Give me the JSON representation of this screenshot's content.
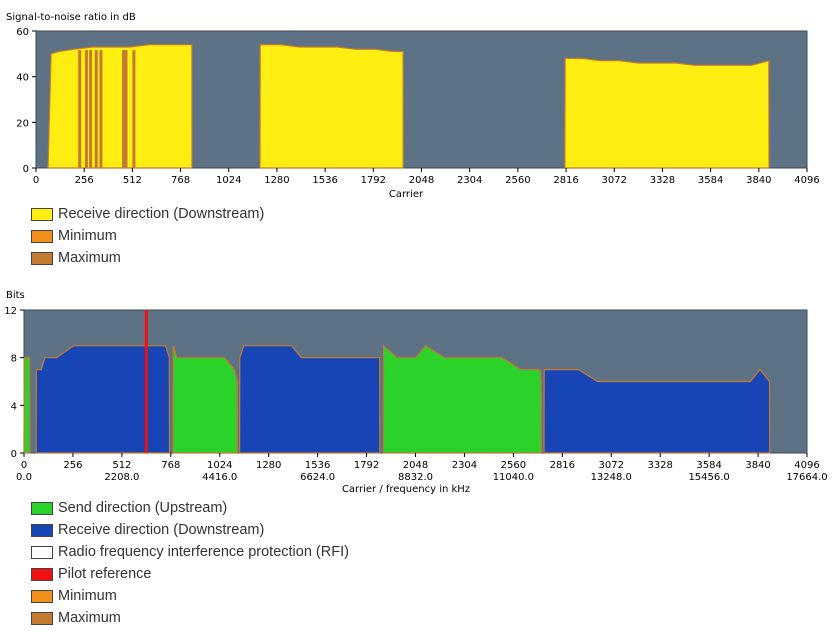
{
  "chart_data": [
    {
      "type": "area",
      "title": "Signal-to-noise ratio in dB",
      "xlabel": "Carrier",
      "ylabel": "",
      "xlim": [
        0,
        4096
      ],
      "ylim": [
        0,
        60
      ],
      "x_ticks": [
        "0",
        "256",
        "512",
        "768",
        "1024",
        "1280",
        "1536",
        "1792",
        "2048",
        "2304",
        "2560",
        "2816",
        "3072",
        "3328",
        "3584",
        "3840",
        "4096"
      ],
      "y_ticks": [
        "0",
        "20",
        "40",
        "60"
      ],
      "grid": false,
      "series": [
        {
          "name": "Receive direction (Downstream)",
          "color": "#ffee11",
          "x": [
            64,
            80,
            120,
            200,
            300,
            400,
            500,
            600,
            700,
            800,
            828,
            829
          ],
          "y": [
            0,
            50,
            51,
            52,
            53,
            53,
            53,
            54,
            54,
            54,
            54,
            0
          ]
        },
        {
          "name": "Receive direction (Downstream)",
          "color": "#ffee11",
          "x": [
            1190,
            1191,
            1300,
            1400,
            1500,
            1600,
            1700,
            1800,
            1900,
            1950,
            1951
          ],
          "y": [
            0,
            54,
            54,
            53,
            53,
            53,
            52,
            52,
            51,
            51,
            0
          ]
        },
        {
          "name": "Receive direction (Downstream)",
          "color": "#ffee11",
          "x": [
            2810,
            2811,
            2900,
            3000,
            3100,
            3200,
            3300,
            3400,
            3500,
            3600,
            3700,
            3800,
            3893,
            3894
          ],
          "y": [
            0,
            48,
            48,
            47,
            47,
            46,
            46,
            46,
            45,
            45,
            45,
            45,
            47,
            0
          ]
        }
      ],
      "min_dips": {
        "x": [
          232,
          268,
          290,
          320,
          345,
          465,
          478,
          520
        ],
        "y": [
          0,
          0,
          0,
          0,
          0,
          0,
          0,
          0
        ]
      },
      "legend": [
        {
          "label": "Receive direction (Downstream)",
          "color": "#ffee11"
        },
        {
          "label": "Minimum",
          "color": "#f0901a"
        },
        {
          "label": "Maximum",
          "color": "#c47a30"
        }
      ],
      "legend_position": "below"
    },
    {
      "type": "area",
      "title": "Bits",
      "xlabel": "Carrier / frequency in kHz",
      "ylabel": "",
      "xlim": [
        0,
        4096
      ],
      "ylim": [
        0,
        12
      ],
      "x_ticks": [
        "0",
        "256",
        "512",
        "768",
        "1024",
        "1280",
        "1536",
        "1792",
        "2048",
        "2304",
        "2560",
        "2816",
        "3072",
        "3328",
        "3584",
        "3840",
        "4096"
      ],
      "x_ticks_freq": [
        "0.0",
        "2208.0",
        "4416.0",
        "6624.0",
        "8832.0",
        "11040.0",
        "13248.0",
        "15456.0",
        "17664.0"
      ],
      "y_ticks": [
        "0",
        "4",
        "8",
        "12"
      ],
      "grid": false,
      "series": [
        {
          "name": "Send direction (Upstream)",
          "color": "#2ad22a",
          "x": [
            0,
            1,
            30,
            31
          ],
          "y": [
            0,
            8,
            8,
            0
          ]
        },
        {
          "name": "Receive direction (Downstream)",
          "color": "#1845b5",
          "x": [
            64,
            65,
            90,
            110,
            170,
            260,
            350,
            500,
            700,
            740,
            760,
            761
          ],
          "y": [
            0,
            7,
            7,
            8,
            8,
            9,
            9,
            9,
            9,
            9,
            8,
            0
          ]
        },
        {
          "name": "Send direction (Upstream)",
          "color": "#2ad22a",
          "x": [
            780,
            781,
            800,
            900,
            1000,
            1050,
            1100,
            1115,
            1116
          ],
          "y": [
            0,
            9,
            8,
            8,
            8,
            8,
            7,
            6,
            0
          ]
        },
        {
          "name": "Receive direction (Downstream)",
          "color": "#1845b5",
          "x": [
            1128,
            1129,
            1150,
            1200,
            1300,
            1400,
            1450,
            1500,
            1600,
            1800,
            1860,
            1861
          ],
          "y": [
            0,
            8,
            9,
            9,
            9,
            9,
            8,
            8,
            8,
            8,
            8,
            0
          ]
        },
        {
          "name": "Send direction (Upstream)",
          "color": "#2ad22a",
          "x": [
            1880,
            1881,
            1950,
            2000,
            2050,
            2100,
            2200,
            2300,
            2400,
            2500,
            2600,
            2700,
            2705,
            2706
          ],
          "y": [
            0,
            9,
            8,
            8,
            8,
            9,
            8,
            8,
            8,
            8,
            7,
            7,
            6,
            0
          ]
        },
        {
          "name": "Receive direction (Downstream)",
          "color": "#1845b5",
          "x": [
            2720,
            2721,
            2800,
            2900,
            3000,
            3100,
            3200,
            3300,
            3400,
            3500,
            3600,
            3700,
            3800,
            3850,
            3900,
            3901
          ],
          "y": [
            0,
            7,
            7,
            7,
            6,
            6,
            6,
            6,
            6,
            6,
            6,
            6,
            6,
            7,
            6,
            0
          ]
        }
      ],
      "pilot_carrier": 640,
      "legend": [
        {
          "label": "Send direction (Upstream)",
          "color": "#2ad22a"
        },
        {
          "label": "Receive direction (Downstream)",
          "color": "#1845b5"
        },
        {
          "label": "Radio frequency interference protection (RFI)",
          "color": "#ffffff"
        },
        {
          "label": "Pilot reference",
          "color": "#ee1111"
        },
        {
          "label": "Minimum",
          "color": "#f0901a"
        },
        {
          "label": "Maximum",
          "color": "#c47a30"
        }
      ],
      "legend_position": "below"
    }
  ],
  "colors": {
    "plot_bg": "#5e7285",
    "grid_line": "#3a4a58"
  }
}
